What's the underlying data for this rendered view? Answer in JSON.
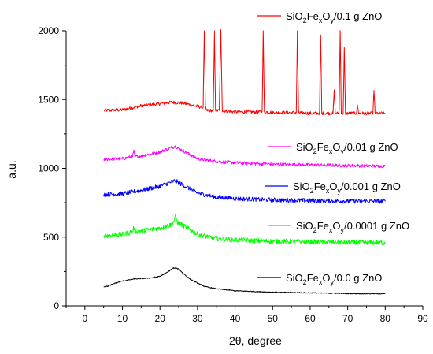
{
  "chart_data": {
    "type": "line",
    "xlabel": "2θ, degree",
    "ylabel": "a.u.",
    "xlim": [
      -5,
      90
    ],
    "ylim": [
      0,
      2000
    ],
    "xticks": [
      0,
      10,
      20,
      30,
      40,
      50,
      60,
      70,
      80,
      90
    ],
    "yticks": [
      0,
      500,
      1000,
      1500,
      2000
    ],
    "grid": false,
    "legend_placement": "inline-right",
    "series": [
      {
        "name": "SiO2FexOy/0.1 g ZnO",
        "legend_parts": [
          "SiO",
          "2",
          "Fe",
          "x",
          "O",
          "y",
          "/0.1 g ZnO"
        ],
        "color": "#ff0000",
        "x": [
          5,
          10,
          15,
          20,
          23,
          26,
          30,
          31.5,
          31.8,
          32.1,
          32.5,
          34.2,
          34.5,
          34.8,
          35.8,
          36.2,
          36.6,
          40,
          47.2,
          47.5,
          47.8,
          52,
          56.3,
          56.6,
          56.9,
          60,
          62.5,
          62.8,
          63.1,
          65,
          66.1,
          66.4,
          66.7,
          67.7,
          68,
          68.3,
          68.8,
          69.1,
          69.4,
          69.7,
          72.3,
          72.6,
          72.9,
          76.7,
          77,
          77.3,
          80
        ],
        "y": [
          1420,
          1425,
          1455,
          1470,
          1480,
          1475,
          1450,
          1440,
          2000,
          1440,
          1420,
          1420,
          2000,
          1420,
          1420,
          2000,
          1420,
          1410,
          1410,
          2000,
          1410,
          1405,
          1405,
          2000,
          1405,
          1400,
          1400,
          1970,
          1400,
          1400,
          1400,
          1570,
          1400,
          1400,
          2000,
          1400,
          1400,
          1880,
          1400,
          1400,
          1400,
          1460,
          1400,
          1400,
          1560,
          1400,
          1400
        ],
        "noise": 12
      },
      {
        "name": "SiO2FexOy/0.01 g ZnO",
        "legend_parts": [
          "SiO",
          "2",
          "Fe",
          "x",
          "O",
          "y",
          "/0.01 g ZnO"
        ],
        "color": "#ff00ff",
        "x": [
          5,
          10,
          12.7,
          13,
          13.3,
          15,
          20,
          23,
          24,
          26,
          30,
          35,
          40,
          50,
          60,
          70,
          80
        ],
        "y": [
          1065,
          1070,
          1085,
          1130,
          1085,
          1090,
          1120,
          1150,
          1160,
          1130,
          1070,
          1050,
          1040,
          1030,
          1025,
          1020,
          1015
        ],
        "noise": 12
      },
      {
        "name": "SiO2FexOy/0.001 g ZnO",
        "legend_parts": [
          "SiO",
          "2",
          "Fe",
          "x",
          "O",
          "y",
          "/0.001 g ZnO"
        ],
        "color": "#0000ff",
        "x": [
          5,
          10,
          15,
          20,
          24,
          26,
          30,
          35,
          40,
          50,
          60,
          70,
          80
        ],
        "y": [
          810,
          815,
          840,
          870,
          910,
          880,
          820,
          790,
          780,
          770,
          765,
          762,
          760
        ],
        "noise": 16
      },
      {
        "name": "SiO2FexOy/0.0001 g ZnO",
        "legend_parts": [
          "SiO",
          "2",
          "Fe",
          "x",
          "O",
          "y",
          "/0.0001 g ZnO"
        ],
        "color": "#00ff00",
        "x": [
          5,
          10,
          12.7,
          13,
          13.3,
          15,
          20,
          23,
          23.8,
          24.2,
          24.6,
          27,
          30,
          35,
          40,
          50,
          60,
          70,
          80
        ],
        "y": [
          510,
          520,
          540,
          570,
          540,
          545,
          565,
          590,
          620,
          655,
          610,
          570,
          520,
          490,
          480,
          470,
          465,
          462,
          460
        ],
        "noise": 18
      },
      {
        "name": "SiO2FexOy/0.0 g ZnO",
        "legend_parts": [
          "SiO",
          "2",
          "Fe",
          "x",
          "O",
          "y",
          "/0.0 g ZnO"
        ],
        "color": "#000000",
        "x": [
          5,
          6,
          8,
          10,
          13,
          16,
          18,
          20,
          22,
          23.5,
          25,
          26,
          28,
          30,
          32,
          35,
          40,
          45,
          50,
          60,
          70,
          80
        ],
        "y": [
          140,
          142,
          165,
          180,
          195,
          200,
          205,
          215,
          245,
          275,
          270,
          240,
          195,
          165,
          140,
          125,
          110,
          105,
          100,
          95,
          90,
          88
        ],
        "noise": 3
      }
    ]
  }
}
